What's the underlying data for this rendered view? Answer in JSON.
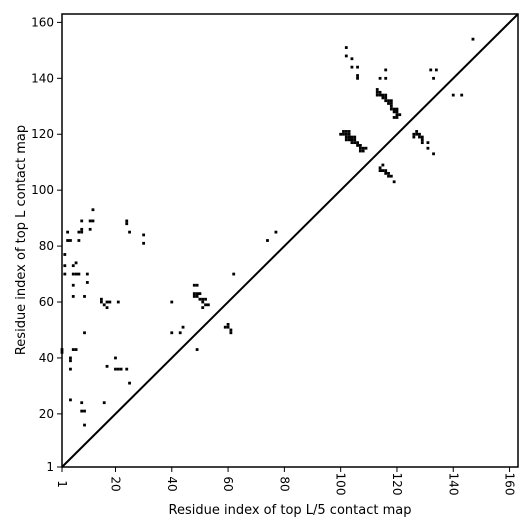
{
  "chart_data": {
    "type": "scatter",
    "xlabel": "Residue index of top L/5 contact map",
    "ylabel": "Residue index of top L contact map",
    "xlim": [
      1,
      163
    ],
    "ylim": [
      1,
      163
    ],
    "xticks": [
      1,
      20,
      40,
      60,
      80,
      100,
      120,
      140,
      160
    ],
    "yticks": [
      1,
      20,
      40,
      60,
      80,
      100,
      120,
      140,
      160
    ],
    "diagonal": {
      "from": [
        1,
        1
      ],
      "to": [
        163,
        163
      ]
    },
    "marker_color": "#000000",
    "grid": false,
    "points": [
      [
        1,
        42
      ],
      [
        1,
        43
      ],
      [
        4,
        25
      ],
      [
        4,
        36
      ],
      [
        4,
        39
      ],
      [
        4,
        40
      ],
      [
        5,
        43
      ],
      [
        6,
        43
      ],
      [
        8,
        24
      ],
      [
        8,
        21
      ],
      [
        9,
        21
      ],
      [
        9,
        16
      ],
      [
        9,
        49
      ],
      [
        16,
        24
      ],
      [
        17,
        37
      ],
      [
        20,
        40
      ],
      [
        20,
        36
      ],
      [
        21,
        36
      ],
      [
        22,
        36
      ],
      [
        24,
        36
      ],
      [
        25,
        31
      ],
      [
        15,
        61
      ],
      [
        15,
        60
      ],
      [
        16,
        59
      ],
      [
        17,
        60
      ],
      [
        17,
        58
      ],
      [
        18,
        60
      ],
      [
        21,
        60
      ],
      [
        2,
        70
      ],
      [
        2,
        73
      ],
      [
        2,
        77
      ],
      [
        3,
        82
      ],
      [
        3,
        85
      ],
      [
        4,
        82
      ],
      [
        5,
        70
      ],
      [
        5,
        73
      ],
      [
        5,
        62
      ],
      [
        5,
        66
      ],
      [
        6,
        70
      ],
      [
        6,
        74
      ],
      [
        7,
        70
      ],
      [
        7,
        82
      ],
      [
        7,
        85
      ],
      [
        8,
        86
      ],
      [
        8,
        85
      ],
      [
        8,
        89
      ],
      [
        9,
        62
      ],
      [
        10,
        67
      ],
      [
        10,
        70
      ],
      [
        11,
        86
      ],
      [
        11,
        89
      ],
      [
        12,
        93
      ],
      [
        12,
        89
      ],
      [
        24,
        88
      ],
      [
        24,
        89
      ],
      [
        25,
        85
      ],
      [
        30,
        84
      ],
      [
        30,
        81
      ],
      [
        40,
        60
      ],
      [
        40,
        49
      ],
      [
        43,
        49
      ],
      [
        44,
        51
      ],
      [
        49,
        43
      ],
      [
        48,
        66
      ],
      [
        49,
        66
      ],
      [
        48,
        63
      ],
      [
        49,
        63
      ],
      [
        50,
        63
      ],
      [
        48,
        62
      ],
      [
        49,
        62
      ],
      [
        50,
        61
      ],
      [
        51,
        61
      ],
      [
        52,
        61
      ],
      [
        51,
        60
      ],
      [
        52,
        59
      ],
      [
        53,
        59
      ],
      [
        51,
        58
      ],
      [
        59,
        51
      ],
      [
        60,
        51
      ],
      [
        60,
        52
      ],
      [
        61,
        50
      ],
      [
        61,
        49
      ],
      [
        62,
        70
      ],
      [
        74,
        82
      ],
      [
        77,
        85
      ],
      [
        100,
        120
      ],
      [
        101,
        120
      ],
      [
        101,
        121
      ],
      [
        102,
        121
      ],
      [
        102,
        120
      ],
      [
        103,
        121
      ],
      [
        103,
        120
      ],
      [
        102,
        119
      ],
      [
        103,
        119
      ],
      [
        104,
        119
      ],
      [
        105,
        119
      ],
      [
        102,
        118
      ],
      [
        103,
        118
      ],
      [
        104,
        118
      ],
      [
        105,
        118
      ],
      [
        104,
        117
      ],
      [
        105,
        117
      ],
      [
        106,
        117
      ],
      [
        106,
        116
      ],
      [
        107,
        116
      ],
      [
        107,
        115
      ],
      [
        108,
        115
      ],
      [
        109,
        115
      ],
      [
        107,
        114
      ],
      [
        108,
        114
      ],
      [
        113,
        136
      ],
      [
        113,
        135
      ],
      [
        113,
        134
      ],
      [
        114,
        135
      ],
      [
        114,
        134
      ],
      [
        115,
        134
      ],
      [
        116,
        134
      ],
      [
        115,
        133
      ],
      [
        116,
        133
      ],
      [
        116,
        132
      ],
      [
        117,
        132
      ],
      [
        118,
        132
      ],
      [
        117,
        131
      ],
      [
        118,
        131
      ],
      [
        118,
        130
      ],
      [
        118,
        129
      ],
      [
        119,
        129
      ],
      [
        120,
        129
      ],
      [
        119,
        128
      ],
      [
        120,
        128
      ],
      [
        120,
        127
      ],
      [
        121,
        127
      ],
      [
        119,
        126
      ],
      [
        120,
        126
      ],
      [
        114,
        108
      ],
      [
        115,
        109
      ],
      [
        114,
        107
      ],
      [
        115,
        107
      ],
      [
        116,
        107
      ],
      [
        116,
        106
      ],
      [
        117,
        106
      ],
      [
        117,
        105
      ],
      [
        118,
        105
      ],
      [
        119,
        103
      ],
      [
        126,
        120
      ],
      [
        127,
        120
      ],
      [
        127,
        121
      ],
      [
        128,
        120
      ],
      [
        128,
        119
      ],
      [
        129,
        119
      ],
      [
        129,
        118
      ],
      [
        126,
        119
      ],
      [
        129,
        117
      ],
      [
        131,
        115
      ],
      [
        131,
        117
      ],
      [
        133,
        113
      ],
      [
        102,
        151
      ],
      [
        102,
        148
      ],
      [
        104,
        147
      ],
      [
        104,
        144
      ],
      [
        106,
        144
      ],
      [
        106,
        141
      ],
      [
        106,
        140
      ],
      [
        114,
        140
      ],
      [
        116,
        143
      ],
      [
        116,
        140
      ],
      [
        132,
        143
      ],
      [
        133,
        140
      ],
      [
        134,
        143
      ],
      [
        140,
        134
      ],
      [
        143,
        134
      ],
      [
        147,
        154
      ]
    ]
  }
}
